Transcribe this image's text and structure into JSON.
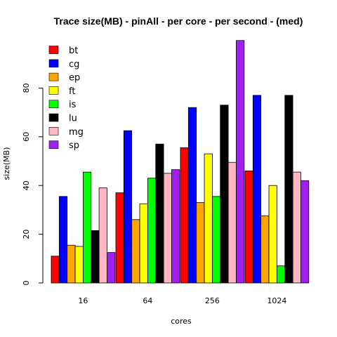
{
  "chart_data": {
    "type": "bar",
    "title": "Trace size(MB) - pinAll - per core - per second - (med)",
    "xlabel": "cores",
    "ylabel": "size(MB)",
    "categories": [
      "16",
      "64",
      "256",
      "1024"
    ],
    "yticks": [
      0,
      20,
      40,
      60,
      80
    ],
    "ylim": [
      0,
      100
    ],
    "legend_position": "top-left",
    "series": [
      {
        "name": "bt",
        "color": "#ff0000",
        "values": [
          11,
          37,
          55.5,
          46
        ]
      },
      {
        "name": "cg",
        "color": "#0000ff",
        "values": [
          35.5,
          62.5,
          72,
          77
        ]
      },
      {
        "name": "ep",
        "color": "#ffa500",
        "values": [
          15.5,
          26,
          33,
          27.5
        ]
      },
      {
        "name": "ft",
        "color": "#ffff00",
        "values": [
          15,
          32.5,
          53,
          40
        ]
      },
      {
        "name": "is",
        "color": "#00ff00",
        "values": [
          45.5,
          43,
          35.5,
          7
        ]
      },
      {
        "name": "lu",
        "color": "#000000",
        "values": [
          21.5,
          57,
          73,
          77
        ]
      },
      {
        "name": "mg",
        "color": "#ffb6c1",
        "values": [
          39,
          45,
          49.5,
          45.5
        ]
      },
      {
        "name": "sp",
        "color": "#a020f0",
        "values": [
          12.5,
          46.5,
          99.5,
          42
        ]
      }
    ]
  }
}
